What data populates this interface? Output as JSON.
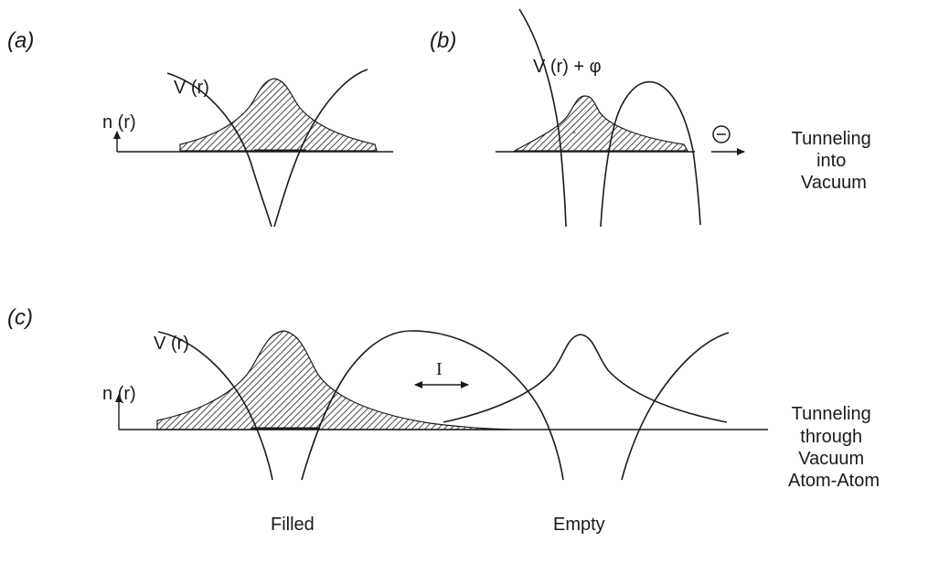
{
  "panel_a": {
    "label": "(a)",
    "potential_label": "V (r)",
    "density_label": "n (r)"
  },
  "panel_b": {
    "label": "(b)",
    "potential_label": "V (r) + φ",
    "electron_symbol": "⊖",
    "side_label": [
      "Tunneling",
      "into",
      "Vacuum"
    ]
  },
  "panel_c": {
    "label": "(c)",
    "potential_label": "V (r)",
    "density_label": "n (r)",
    "current_label": "I",
    "filled_label": "Filled",
    "empty_label": "Empty",
    "side_label": [
      "Tunneling",
      "through",
      "Vacuum",
      "Atom-Atom"
    ]
  },
  "colors": {
    "ink": "#1a1a1a",
    "hatch": "#1a1a1a",
    "background": "#ffffff"
  }
}
